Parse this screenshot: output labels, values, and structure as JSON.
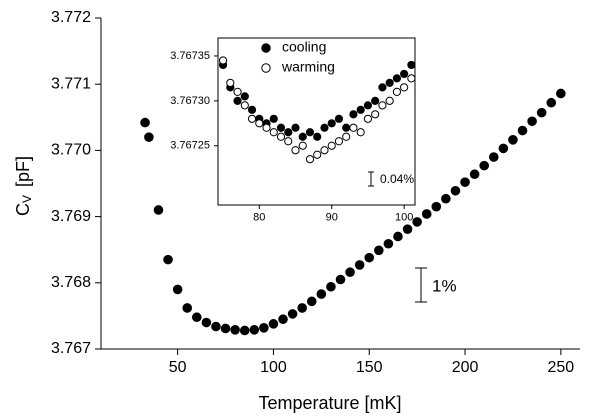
{
  "chart_data": [
    {
      "type": "scatter",
      "xlabel": "Temperature [mK]",
      "ylabel": [
        "C",
        "V",
        "[pF]"
      ],
      "xlim": [
        10,
        260
      ],
      "xticks": [
        50,
        100,
        150,
        200,
        250
      ],
      "ylim": [
        3.767,
        3.772
      ],
      "yticks": [
        3.767,
        3.768,
        3.769,
        {
          "value": 3.77,
          "label": "3.770"
        },
        3.771,
        3.772
      ],
      "series": [
        {
          "color": "#000000",
          "marker": "filled",
          "x": [
            33,
            35,
            40,
            45,
            50,
            55,
            60,
            65,
            70,
            75,
            80,
            85,
            90,
            95,
            100,
            105,
            110,
            115,
            120,
            125,
            130,
            135,
            140,
            145,
            150,
            155,
            160,
            165,
            170,
            175,
            180,
            185,
            190,
            195,
            200,
            205,
            210,
            215,
            220,
            225,
            230,
            235,
            240,
            245,
            250
          ],
          "values": [
            3.77042,
            3.7702,
            3.7691,
            3.76835,
            3.7679,
            3.76762,
            3.76748,
            3.7674,
            3.76734,
            3.76731,
            3.76729,
            3.76728,
            3.76729,
            3.76732,
            3.76738,
            3.76745,
            3.76753,
            3.76762,
            3.76772,
            3.76783,
            3.76794,
            3.76805,
            3.76816,
            3.76827,
            3.76838,
            3.76849,
            3.76859,
            3.7687,
            3.76881,
            3.76892,
            3.76904,
            3.76915,
            3.76927,
            3.76939,
            3.76952,
            3.76964,
            3.76977,
            3.7699,
            3.77003,
            3.77016,
            3.7703,
            3.77044,
            3.77057,
            3.77072,
            3.77086
          ]
        }
      ],
      "annotations": [
        "1%"
      ]
    },
    {
      "type": "scatter",
      "xlim": [
        74.3,
        101.5
      ],
      "xticks": [
        80,
        90,
        100
      ],
      "ylim": [
        3.767184,
        3.76737
      ],
      "yticks": [
        3.76725,
        {
          "value": 3.7673,
          "label": "3.76730"
        },
        3.76735
      ],
      "series": [
        {
          "name": "cooling",
          "color": "#000000",
          "marker": "filled",
          "x": [
            75,
            76,
            77,
            78,
            79,
            80,
            81,
            82,
            83,
            84,
            85,
            86,
            87,
            88,
            89,
            90,
            91,
            92,
            93,
            94,
            95,
            96,
            97,
            98,
            99,
            100,
            101
          ],
          "values": [
            3.76734,
            3.767315,
            3.7673,
            3.767305,
            3.76729,
            3.76728,
            3.767275,
            3.76728,
            3.76727,
            3.767265,
            3.76727,
            3.76726,
            3.767265,
            3.76726,
            3.76727,
            3.767275,
            3.76728,
            3.76727,
            3.767285,
            3.76729,
            3.767295,
            3.7673,
            3.767315,
            3.76732,
            3.767325,
            3.76733,
            3.76734
          ]
        },
        {
          "name": "warming",
          "color": "#000000",
          "marker": "open",
          "x": [
            75,
            76,
            77,
            78,
            79,
            80,
            81,
            82,
            83,
            84,
            85,
            86,
            87,
            88,
            89,
            90,
            91,
            92,
            93,
            94,
            95,
            96,
            97,
            98,
            99,
            100,
            101
          ],
          "values": [
            3.767345,
            3.76732,
            3.76731,
            3.767295,
            3.76728,
            3.767275,
            3.76727,
            3.767265,
            3.76726,
            3.767255,
            3.767245,
            3.76725,
            3.767235,
            3.76724,
            3.767245,
            3.76725,
            3.767255,
            3.76726,
            3.76727,
            3.767265,
            3.76728,
            3.767285,
            3.767295,
            3.7673,
            3.76731,
            3.767315,
            3.767325
          ]
        }
      ],
      "annotations": [
        "0.04%"
      ]
    }
  ]
}
